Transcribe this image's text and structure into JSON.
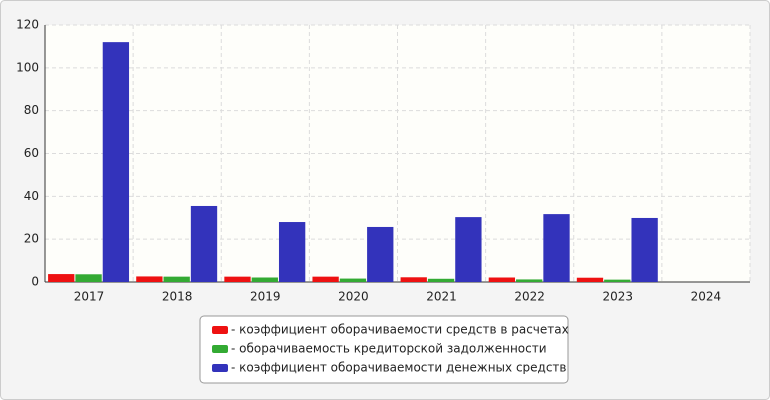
{
  "chart_data": {
    "type": "bar",
    "categories": [
      "2017",
      "2018",
      "2019",
      "2020",
      "2021",
      "2022",
      "2023",
      "2024"
    ],
    "series": [
      {
        "name": "- коэффициент оборачиваемости средств в расчетах",
        "color": "#ee1111",
        "values": [
          3.7,
          2.6,
          2.5,
          2.5,
          2.2,
          2.1,
          2.0,
          null
        ]
      },
      {
        "name": "- оборачиваемость кредиторской задолженности",
        "color": "#33aa33",
        "values": [
          3.6,
          2.5,
          2.1,
          1.6,
          1.5,
          1.2,
          1.1,
          null
        ]
      },
      {
        "name": "- коэффициент оборачиваемости денежных средств",
        "color": "#3333bb",
        "values": [
          112,
          35.5,
          28,
          25.7,
          30.3,
          31.7,
          29.9,
          null
        ]
      }
    ],
    "ylim": [
      0,
      120
    ],
    "yticks": [
      0,
      20,
      40,
      60,
      80,
      100,
      120
    ],
    "grid": true,
    "legend": "bottom"
  }
}
